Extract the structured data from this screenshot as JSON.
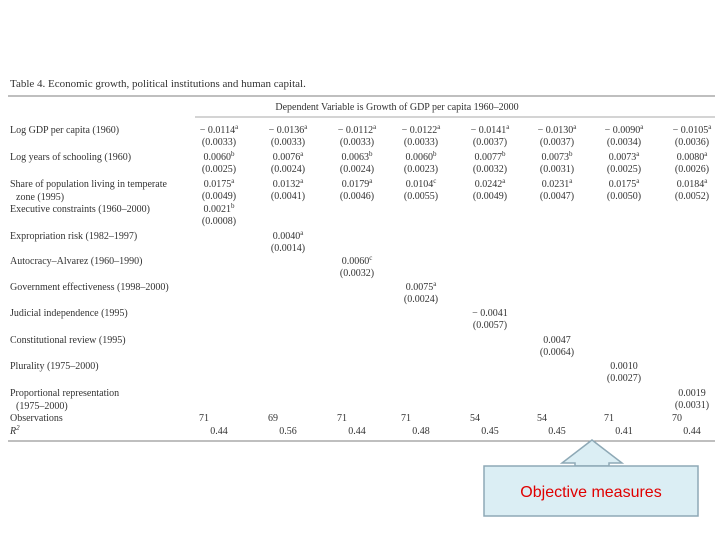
{
  "table": {
    "title": "Table 4. Economic growth, political institutions and human capital.",
    "header": "Dependent Variable is Growth of GDP per capita 1960–2000",
    "rows": [
      {
        "label": [
          "Log GDP per capita (1960)"
        ],
        "coef": [
          {
            "text": "− 0.0114",
            "sup": "a"
          },
          {
            "text": "− 0.0136",
            "sup": "a"
          },
          {
            "text": "− 0.0112",
            "sup": "a"
          },
          {
            "text": "− 0.0122",
            "sup": "a"
          },
          {
            "text": "− 0.0141",
            "sup": "a"
          },
          {
            "text": "− 0.0130",
            "sup": "a"
          },
          {
            "text": "− 0.0090",
            "sup": "a"
          },
          {
            "text": "− 0.0105",
            "sup": "a"
          }
        ],
        "se": [
          "(0.0033)",
          "(0.0033)",
          "(0.0033)",
          "(0.0033)",
          "(0.0037)",
          "(0.0037)",
          "(0.0034)",
          "(0.0036)"
        ]
      },
      {
        "label": [
          "Log years of schooling (1960)"
        ],
        "coef": [
          {
            "text": "0.0060",
            "sup": "b"
          },
          {
            "text": "0.0076",
            "sup": "a"
          },
          {
            "text": "0.0063",
            "sup": "b"
          },
          {
            "text": "0.0060",
            "sup": "b"
          },
          {
            "text": "0.0077",
            "sup": "b"
          },
          {
            "text": "0.0073",
            "sup": "b"
          },
          {
            "text": "0.0073",
            "sup": "a"
          },
          {
            "text": "0.0080",
            "sup": "a"
          }
        ],
        "se": [
          "(0.0025)",
          "(0.0024)",
          "(0.0024)",
          "(0.0023)",
          "(0.0032)",
          "(0.0031)",
          "(0.0025)",
          "(0.0026)"
        ]
      },
      {
        "label": [
          "Share of population living in temperate",
          "zone (1995)"
        ],
        "coef": [
          {
            "text": "0.0175",
            "sup": "a"
          },
          {
            "text": "0.0132",
            "sup": "a"
          },
          {
            "text": "0.0179",
            "sup": "a"
          },
          {
            "text": "0.0104",
            "sup": "c"
          },
          {
            "text": "0.0242",
            "sup": "a"
          },
          {
            "text": "0.0231",
            "sup": "a"
          },
          {
            "text": "0.0175",
            "sup": "a"
          },
          {
            "text": "0.0184",
            "sup": "a"
          }
        ],
        "se": [
          "(0.0049)",
          "(0.0041)",
          "(0.0046)",
          "(0.0055)",
          "(0.0049)",
          "(0.0047)",
          "(0.0050)",
          "(0.0052)"
        ]
      },
      {
        "label": [
          "Executive constraints (1960–2000)"
        ],
        "coef": [
          {
            "text": "0.0021",
            "sup": "b"
          },
          null,
          null,
          null,
          null,
          null,
          null,
          null
        ],
        "se": [
          "(0.0008)",
          null,
          null,
          null,
          null,
          null,
          null,
          null
        ]
      },
      {
        "label": [
          "Expropriation risk (1982–1997)"
        ],
        "coef": [
          null,
          {
            "text": "0.0040",
            "sup": "a"
          },
          null,
          null,
          null,
          null,
          null,
          null
        ],
        "se": [
          null,
          "(0.0014)",
          null,
          null,
          null,
          null,
          null,
          null
        ]
      },
      {
        "label": [
          "Autocracy–Alvarez (1960–1990)"
        ],
        "coef": [
          null,
          null,
          {
            "text": "0.0060",
            "sup": "c"
          },
          null,
          null,
          null,
          null,
          null
        ],
        "se": [
          null,
          null,
          "(0.0032)",
          null,
          null,
          null,
          null,
          null
        ]
      },
      {
        "label": [
          "Government effectiveness (1998–2000)"
        ],
        "coef": [
          null,
          null,
          null,
          {
            "text": "0.0075",
            "sup": "a"
          },
          null,
          null,
          null,
          null
        ],
        "se": [
          null,
          null,
          null,
          "(0.0024)",
          null,
          null,
          null,
          null
        ]
      },
      {
        "label": [
          "Judicial independence (1995)"
        ],
        "coef": [
          null,
          null,
          null,
          null,
          {
            "text": "− 0.0041"
          },
          null,
          null,
          null
        ],
        "se": [
          null,
          null,
          null,
          null,
          "(0.0057)",
          null,
          null,
          null
        ]
      },
      {
        "label": [
          "Constitutional review (1995)"
        ],
        "coef": [
          null,
          null,
          null,
          null,
          null,
          {
            "text": "0.0047"
          },
          null,
          null
        ],
        "se": [
          null,
          null,
          null,
          null,
          null,
          "(0.0064)",
          null,
          null
        ]
      },
      {
        "label": [
          "Plurality (1975–2000)"
        ],
        "coef": [
          null,
          null,
          null,
          null,
          null,
          null,
          {
            "text": "0.0010"
          },
          null
        ],
        "se": [
          null,
          null,
          null,
          null,
          null,
          null,
          "(0.0027)",
          null
        ]
      },
      {
        "label": [
          "Proportional representation",
          "(1975–2000)"
        ],
        "coef": [
          null,
          null,
          null,
          null,
          null,
          null,
          null,
          {
            "text": "0.0019"
          }
        ],
        "se": [
          null,
          null,
          null,
          null,
          null,
          null,
          null,
          "(0.0031)"
        ]
      }
    ],
    "observations": {
      "label": "Observations",
      "values": [
        71,
        69,
        71,
        71,
        54,
        54,
        71,
        70
      ]
    },
    "r2": {
      "label": {
        "text": "R",
        "sup": "2"
      },
      "values": [
        "0.44",
        "0.56",
        "0.44",
        "0.48",
        "0.45",
        "0.45",
        "0.41",
        "0.44"
      ]
    }
  },
  "callout": {
    "text": "Objective measures"
  }
}
